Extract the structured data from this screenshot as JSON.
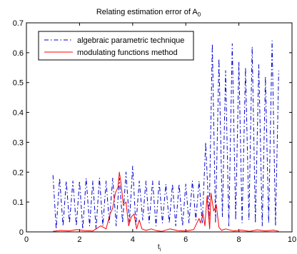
{
  "chart_data": {
    "type": "line",
    "title_main": "Relating estimation error of A",
    "title_sub": "0",
    "xlabel_main": "t",
    "xlabel_sub": "i",
    "ylabel": "",
    "xlim": [
      0,
      10
    ],
    "ylim": [
      0,
      0.7
    ],
    "xticks": [
      "0",
      "2",
      "4",
      "6",
      "8",
      "10"
    ],
    "yticks": [
      "0",
      "0.1",
      "0.2",
      "0.3",
      "0.4",
      "0.5",
      "0.6",
      "0.7"
    ],
    "grid": false,
    "legend_position": "top-left",
    "series": [
      {
        "name": "algebraic parametric technique",
        "color": "#0000cc",
        "dash": "dash-dot",
        "x": [
          1.0,
          1.12,
          1.25,
          1.38,
          1.5,
          1.62,
          1.75,
          1.88,
          2.0,
          2.12,
          2.25,
          2.38,
          2.5,
          2.62,
          2.75,
          2.88,
          3.0,
          3.12,
          3.25,
          3.38,
          3.5,
          3.62,
          3.75,
          3.88,
          4.0,
          4.12,
          4.25,
          4.38,
          4.5,
          4.62,
          4.75,
          4.88,
          5.0,
          5.12,
          5.25,
          5.38,
          5.5,
          5.62,
          5.75,
          5.88,
          6.0,
          6.12,
          6.25,
          6.38,
          6.5,
          6.62,
          6.75,
          6.88,
          7.0,
          7.12,
          7.25,
          7.38,
          7.5,
          7.62,
          7.75,
          7.88,
          8.0,
          8.12,
          8.25,
          8.38,
          8.5,
          8.62,
          8.75,
          8.88,
          9.0,
          9.12,
          9.25,
          9.38,
          9.5
        ],
        "y": [
          0.19,
          0.01,
          0.18,
          0.02,
          0.17,
          0.03,
          0.17,
          0.02,
          0.17,
          0.01,
          0.18,
          0.02,
          0.17,
          0.01,
          0.18,
          0.02,
          0.17,
          0.03,
          0.18,
          0.02,
          0.18,
          0.03,
          0.2,
          0.03,
          0.22,
          0.02,
          0.17,
          0.04,
          0.17,
          0.03,
          0.17,
          0.02,
          0.17,
          0.03,
          0.16,
          0.03,
          0.16,
          0.02,
          0.16,
          0.02,
          0.16,
          0.03,
          0.17,
          0.04,
          0.17,
          0.03,
          0.3,
          0.04,
          0.63,
          0.03,
          0.58,
          0.05,
          0.54,
          0.02,
          0.63,
          0.04,
          0.57,
          0.03,
          0.55,
          0.04,
          0.62,
          0.03,
          0.56,
          0.02,
          0.52,
          0.03,
          0.64,
          0.02,
          0.54
        ]
      },
      {
        "name": "modulating functions method",
        "color": "#ff0000",
        "dash": "solid",
        "x": [
          1.0,
          1.3,
          1.6,
          1.9,
          2.2,
          2.5,
          2.8,
          3.0,
          3.15,
          3.25,
          3.35,
          3.45,
          3.5,
          3.55,
          3.65,
          3.75,
          3.85,
          3.95,
          4.05,
          4.15,
          4.25,
          4.35,
          4.5,
          4.7,
          4.9,
          5.1,
          5.4,
          5.7,
          6.0,
          6.3,
          6.5,
          6.55,
          6.65,
          6.72,
          6.8,
          6.9,
          6.95,
          7.05,
          7.15,
          7.25,
          7.35,
          7.5,
          7.8,
          8.1,
          8.4,
          8.7,
          9.0,
          9.3,
          9.5
        ],
        "y": [
          0.002,
          0.005,
          0.003,
          0.008,
          0.004,
          0.003,
          0.02,
          0.01,
          0.06,
          0.08,
          0.13,
          0.15,
          0.2,
          0.17,
          0.09,
          0.1,
          0.02,
          0.05,
          0.06,
          0.01,
          0.04,
          0.01,
          0.005,
          0.01,
          0.004,
          0.002,
          0.01,
          0.004,
          0.003,
          0.008,
          0.045,
          0.03,
          0.06,
          0.02,
          0.12,
          0.01,
          0.13,
          0.07,
          0.09,
          0.015,
          0.005,
          0.01,
          0.003,
          0.006,
          0.002,
          0.007,
          0.003,
          0.006,
          0.002
        ]
      }
    ]
  }
}
